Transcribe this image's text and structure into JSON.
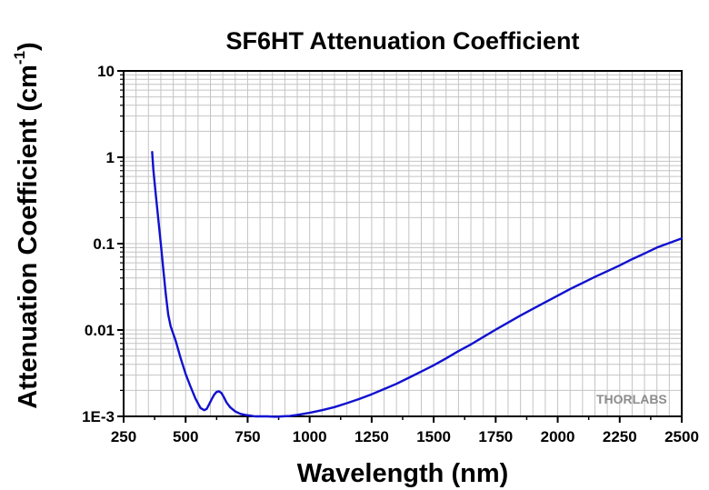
{
  "chart_data": {
    "type": "line",
    "title": "SF6HT Attenuation Coefficient",
    "xlabel": "Wavelength (nm)",
    "ylabel": "Attenuation Coefficient (cm",
    "ylabel_superscript": "-1",
    "ylabel_suffix": ")",
    "xlim": [
      250,
      2500
    ],
    "ylim": [
      0.001,
      10
    ],
    "yscale": "log",
    "grid": true,
    "x_ticks": [
      "250",
      "500",
      "750",
      "1000",
      "1250",
      "1500",
      "1750",
      "2000",
      "2250",
      "2500"
    ],
    "y_ticks": [
      "1E-3",
      "0.01",
      "0.1",
      "1",
      "10"
    ],
    "series": [
      {
        "color": "#1010d0",
        "x": [
          365,
          370,
          380,
          390,
          400,
          410,
          420,
          430,
          440,
          460,
          480,
          500,
          520,
          540,
          560,
          575,
          585,
          595,
          605,
          615,
          625,
          635,
          645,
          655,
          665,
          680,
          700,
          720,
          740,
          760,
          780,
          800,
          830,
          860,
          890,
          920,
          950,
          1000,
          1050,
          1100,
          1150,
          1200,
          1250,
          1300,
          1350,
          1400,
          1450,
          1500,
          1550,
          1600,
          1650,
          1700,
          1750,
          1800,
          1850,
          1900,
          1950,
          2000,
          2050,
          2100,
          2150,
          2200,
          2250,
          2300,
          2350,
          2400,
          2450,
          2500
        ],
        "y": [
          1.15,
          0.72,
          0.36,
          0.19,
          0.1,
          0.05,
          0.026,
          0.015,
          0.011,
          0.0075,
          0.0047,
          0.0031,
          0.0022,
          0.0016,
          0.00125,
          0.00118,
          0.00122,
          0.00138,
          0.00158,
          0.00178,
          0.00192,
          0.00195,
          0.00185,
          0.00165,
          0.00145,
          0.00127,
          0.00114,
          0.00107,
          0.00104,
          0.00102,
          0.001,
          0.001,
          0.001,
          0.00099,
          0.001,
          0.00101,
          0.00104,
          0.0011,
          0.00118,
          0.00128,
          0.00142,
          0.00159,
          0.0018,
          0.00207,
          0.00238,
          0.0028,
          0.0033,
          0.0039,
          0.0047,
          0.0057,
          0.0068,
          0.0083,
          0.0101,
          0.0122,
          0.0147,
          0.0176,
          0.021,
          0.025,
          0.0298,
          0.035,
          0.0412,
          0.048,
          0.056,
          0.066,
          0.077,
          0.09,
          0.102,
          0.115
        ]
      }
    ]
  },
  "watermark": "THORLABS"
}
